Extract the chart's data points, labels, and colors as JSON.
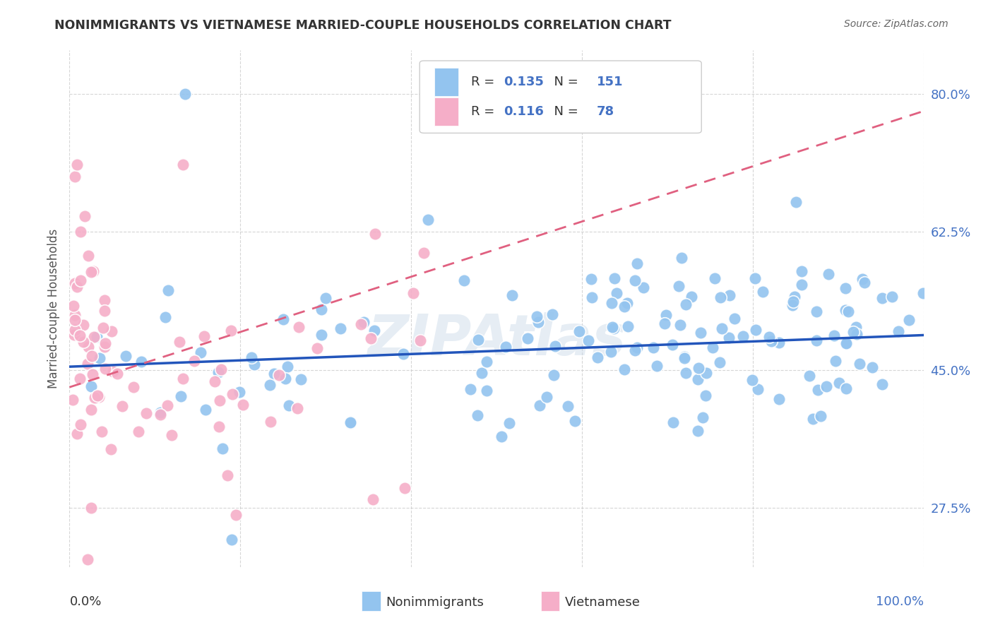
{
  "title": "NONIMMIGRANTS VS VIETNAMESE MARRIED-COUPLE HOUSEHOLDS CORRELATION CHART",
  "source": "Source: ZipAtlas.com",
  "ylabel": "Married-couple Households",
  "ytick_vals": [
    0.275,
    0.45,
    0.625,
    0.8
  ],
  "nonimmigrant_color": "#93c4ef",
  "vietnamese_color": "#f5aec8",
  "trend_nonimmigrant_color": "#2255bb",
  "trend_vietnamese_color": "#e06080",
  "watermark": "ZIPAtlas",
  "R_nonimmigrant": 0.135,
  "N_nonimmigrant": 151,
  "R_vietnamese": 0.116,
  "N_vietnamese": 78,
  "legend_box_color": "#e8e8e8",
  "blue_text_color": "#4472c4",
  "title_color": "#333333",
  "source_color": "#666666"
}
